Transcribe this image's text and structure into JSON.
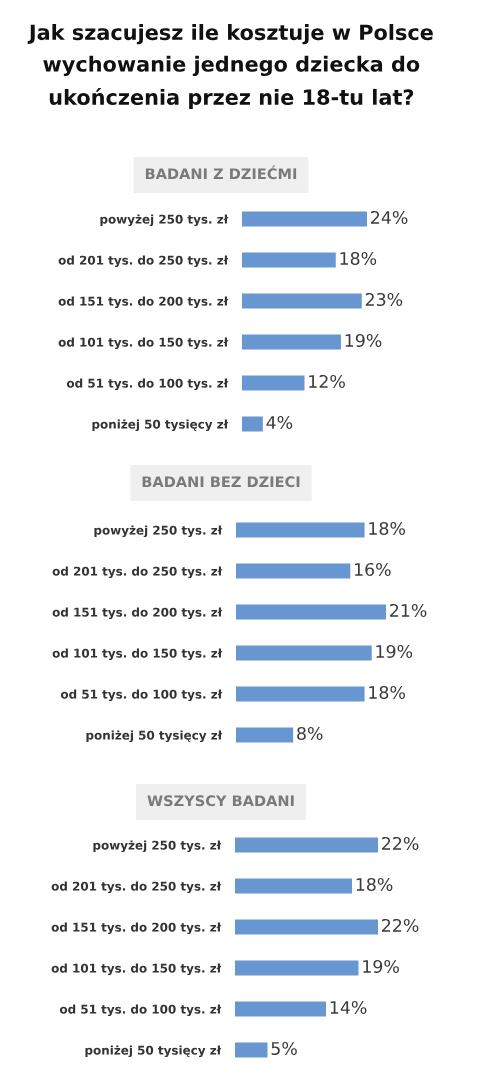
{
  "chart_data": [
    {
      "type": "bar",
      "orientation": "horizontal",
      "title": "Jak szacujesz ile kosztuje w Polsce\nwychowanie jednego dziecka do\nukończenia przez nie 18-tu lat?",
      "subtitle": "BADANI Z DZIEĆMI",
      "categories": [
        "powyżej 250 tys. zł",
        "od 201 tys. do 250 tys. zł",
        "od 151 tys. do 200 tys. zł",
        "od 101 tys. do 150 tys. zł",
        "od 51 tys. do 100 tys. zł",
        "poniżej 50 tysięcy zł"
      ],
      "values": [
        24,
        18,
        23,
        19,
        12,
        4
      ],
      "value_labels": [
        "24%",
        "18%",
        "23%",
        "19%",
        "12%",
        "4%"
      ],
      "color": "#6796d0",
      "tick_labels": "y"
    },
    {
      "type": "bar",
      "orientation": "horizontal",
      "subtitle": "BADANI BEZ DZIECI",
      "categories": [
        "powyżej 250 tys. zł",
        "od 201 tys. do 250 tys. zł",
        "od 151 tys. do 200 tys. zł",
        "od 101 tys. do 150 tys. zł",
        "od 51 tys. do 100 tys. zł",
        "poniżej 50 tysięcy zł"
      ],
      "values": [
        18,
        16,
        21,
        19,
        18,
        8
      ],
      "value_labels": [
        "18%",
        "16%",
        "21%",
        "19%",
        "18%",
        "8%"
      ],
      "color": "#6796d0",
      "tick_labels": "y"
    },
    {
      "type": "bar",
      "orientation": "horizontal",
      "subtitle": "WSZYSCY BADANI",
      "categories": [
        "powyżej 250 tys. zł",
        "od 201 tys. do 250 tys. zł",
        "od 151 tys. do 200 tys. zł",
        "od 101 tys. do 150 tys. zł",
        "od 51 tys. do 100 tys. zł",
        "poniżej 50 tysięcy zł"
      ],
      "values": [
        22,
        18,
        22,
        19,
        14,
        5
      ],
      "value_labels": [
        "22%",
        "18%",
        "22%",
        "19%",
        "14%",
        "5%"
      ],
      "color": "#6796d0",
      "tick_labels": "y"
    }
  ]
}
